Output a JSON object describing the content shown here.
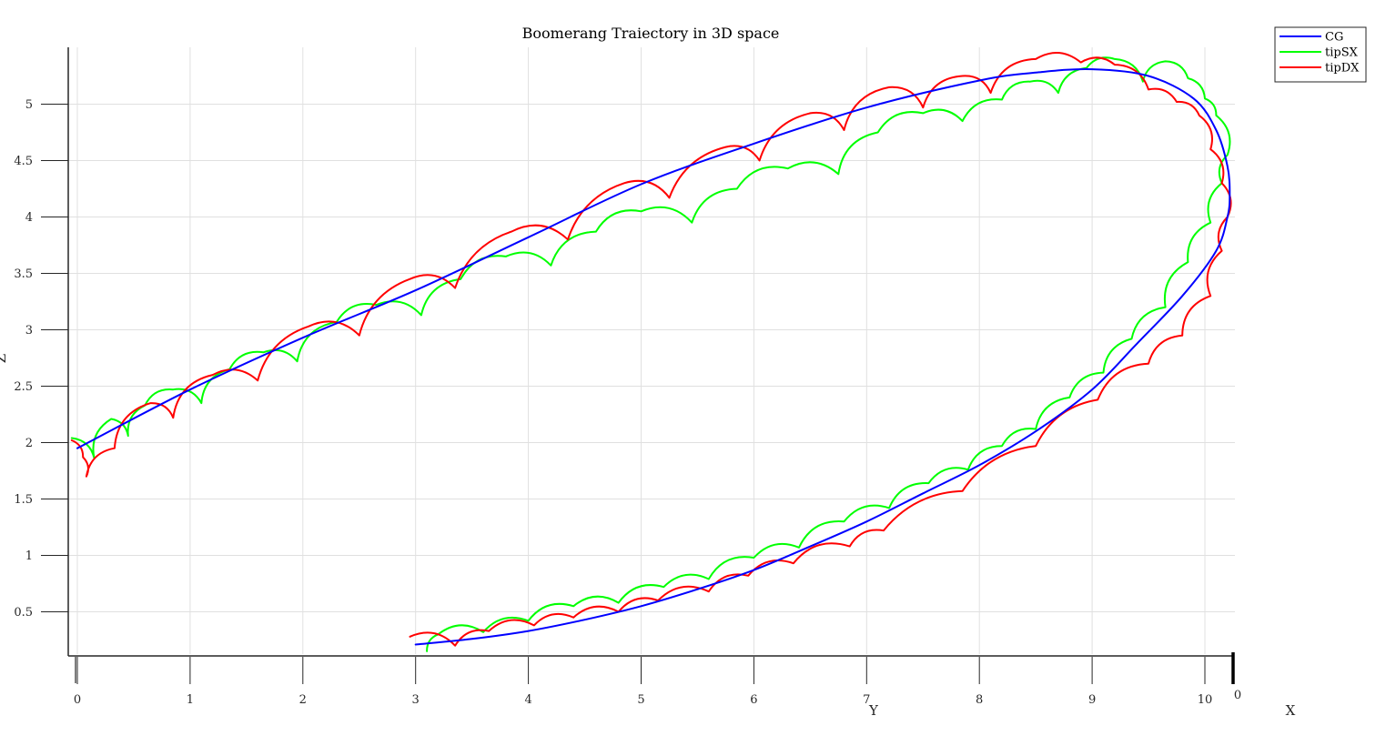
{
  "chart_data": {
    "type": "line",
    "title": "Boomerang Traiectory in 3D space",
    "xlabel": "Y",
    "ylabel": "Z",
    "zlabel": "X",
    "zlabel_tick": "0",
    "x_ticks": [
      "0",
      "1",
      "2",
      "3",
      "4",
      "5",
      "6",
      "7",
      "8",
      "9",
      "10"
    ],
    "y_ticks": [
      "0.5",
      "1",
      "1.5",
      "2",
      "2.5",
      "3",
      "3.5",
      "4",
      "4.5",
      "5"
    ],
    "xlim": [
      -0.1,
      10.25
    ],
    "ylim": [
      0.1,
      5.5
    ],
    "grid": true,
    "legend_position": "top-right",
    "series": [
      {
        "name": "CG",
        "color": "#0000ff",
        "style": "smooth",
        "x": [
          0.0,
          1.0,
          2.0,
          3.0,
          4.0,
          5.0,
          6.0,
          7.0,
          8.0,
          8.5,
          9.0,
          9.5,
          9.9,
          10.1,
          10.2,
          10.22,
          10.2,
          10.1,
          9.8,
          9.4,
          9.0,
          8.5,
          8.0,
          7.5,
          7.0,
          6.5,
          6.0,
          5.5,
          5.0,
          4.5,
          4.0,
          3.5,
          3.0
        ],
        "y": [
          1.95,
          2.47,
          2.93,
          3.35,
          3.82,
          4.29,
          4.65,
          4.97,
          5.21,
          5.28,
          5.31,
          5.25,
          5.05,
          4.77,
          4.45,
          4.2,
          4.0,
          3.7,
          3.3,
          2.88,
          2.47,
          2.1,
          1.8,
          1.55,
          1.3,
          1.08,
          0.87,
          0.7,
          0.55,
          0.43,
          0.33,
          0.26,
          0.21
        ]
      },
      {
        "name": "tipSX",
        "color": "#00ff00",
        "style": "scallop",
        "x": [
          -0.05,
          0.15,
          0.3,
          0.45,
          0.6,
          0.85,
          1.1,
          1.35,
          1.65,
          1.95,
          2.3,
          2.65,
          3.05,
          3.4,
          3.8,
          4.2,
          4.6,
          5.0,
          5.45,
          5.85,
          6.3,
          6.75,
          7.1,
          7.5,
          7.85,
          8.2,
          8.45,
          8.7,
          8.95,
          9.2,
          9.45,
          9.65,
          9.85,
          10.0,
          10.1,
          10.2,
          10.15,
          10.05,
          9.85,
          9.65,
          9.35,
          9.1,
          8.8,
          8.5,
          8.2,
          7.9,
          7.55,
          7.2,
          6.8,
          6.4,
          6.0,
          5.6,
          5.2,
          4.8,
          4.4,
          4.0,
          3.6,
          3.2,
          3.1
        ],
        "y": [
          2.04,
          1.86,
          2.21,
          2.06,
          2.33,
          2.47,
          2.35,
          2.65,
          2.8,
          2.72,
          3.07,
          3.22,
          3.13,
          3.45,
          3.65,
          3.57,
          3.87,
          4.05,
          3.95,
          4.25,
          4.43,
          4.38,
          4.75,
          4.92,
          4.85,
          5.04,
          5.2,
          5.1,
          5.32,
          5.4,
          5.2,
          5.38,
          5.23,
          5.05,
          4.9,
          4.55,
          4.3,
          3.95,
          3.6,
          3.2,
          2.92,
          2.62,
          2.4,
          2.12,
          1.97,
          1.76,
          1.64,
          1.42,
          1.3,
          1.07,
          0.98,
          0.79,
          0.72,
          0.58,
          0.55,
          0.42,
          0.32,
          0.3,
          0.15
        ]
      },
      {
        "name": "tipDX",
        "color": "#ff0000",
        "style": "scallop",
        "x": [
          -0.05,
          0.05,
          0.08,
          0.33,
          0.65,
          0.85,
          1.2,
          1.6,
          2.05,
          2.5,
          2.95,
          3.35,
          3.85,
          4.35,
          4.85,
          5.25,
          5.75,
          6.05,
          6.5,
          6.8,
          7.2,
          7.5,
          7.85,
          8.1,
          8.5,
          8.9,
          9.2,
          9.5,
          9.75,
          9.95,
          10.05,
          10.15,
          10.2,
          10.15,
          10.05,
          9.8,
          9.5,
          9.05,
          8.5,
          7.85,
          7.15,
          6.85,
          6.35,
          5.95,
          5.6,
          5.15,
          4.8,
          4.4,
          4.05,
          3.65,
          3.35,
          2.95
        ],
        "y": [
          2.02,
          1.87,
          1.7,
          1.95,
          2.35,
          2.22,
          2.6,
          2.55,
          3.03,
          2.95,
          3.45,
          3.37,
          3.87,
          3.8,
          4.3,
          4.17,
          4.62,
          4.5,
          4.92,
          4.77,
          5.15,
          4.97,
          5.25,
          5.1,
          5.4,
          5.37,
          5.35,
          5.13,
          5.02,
          4.9,
          4.6,
          4.3,
          4.0,
          3.7,
          3.3,
          2.95,
          2.7,
          2.38,
          1.97,
          1.57,
          1.22,
          1.08,
          0.93,
          0.82,
          0.68,
          0.6,
          0.5,
          0.45,
          0.38,
          0.33,
          0.2,
          0.28
        ]
      }
    ]
  }
}
